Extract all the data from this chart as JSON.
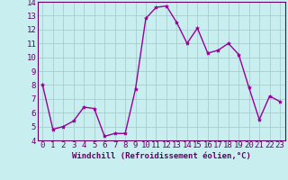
{
  "x": [
    0,
    1,
    2,
    3,
    4,
    5,
    6,
    7,
    8,
    9,
    10,
    11,
    12,
    13,
    14,
    15,
    16,
    17,
    18,
    19,
    20,
    21,
    22,
    23
  ],
  "y": [
    8.0,
    4.8,
    5.0,
    5.4,
    6.4,
    6.3,
    4.3,
    4.5,
    4.5,
    7.7,
    12.8,
    13.6,
    13.7,
    12.5,
    11.0,
    12.1,
    10.3,
    10.5,
    11.0,
    10.2,
    7.8,
    5.5,
    7.2,
    6.8
  ],
  "line_color": "#990099",
  "marker": "*",
  "marker_size": 3,
  "background_color": "#c8eef0",
  "grid_color": "#aacccc",
  "xlabel": "Windchill (Refroidissement éolien,°C)",
  "xlim": [
    -0.5,
    23.5
  ],
  "ylim": [
    4,
    14
  ],
  "yticks": [
    4,
    5,
    6,
    7,
    8,
    9,
    10,
    11,
    12,
    13,
    14
  ],
  "xticks": [
    0,
    1,
    2,
    3,
    4,
    5,
    6,
    7,
    8,
    9,
    10,
    11,
    12,
    13,
    14,
    15,
    16,
    17,
    18,
    19,
    20,
    21,
    22,
    23
  ],
  "xlabel_fontsize": 6.5,
  "tick_fontsize": 6.5,
  "label_color": "#660066",
  "axis_bg": "#c8eef0",
  "spine_color": "#660066",
  "linewidth": 1.0
}
